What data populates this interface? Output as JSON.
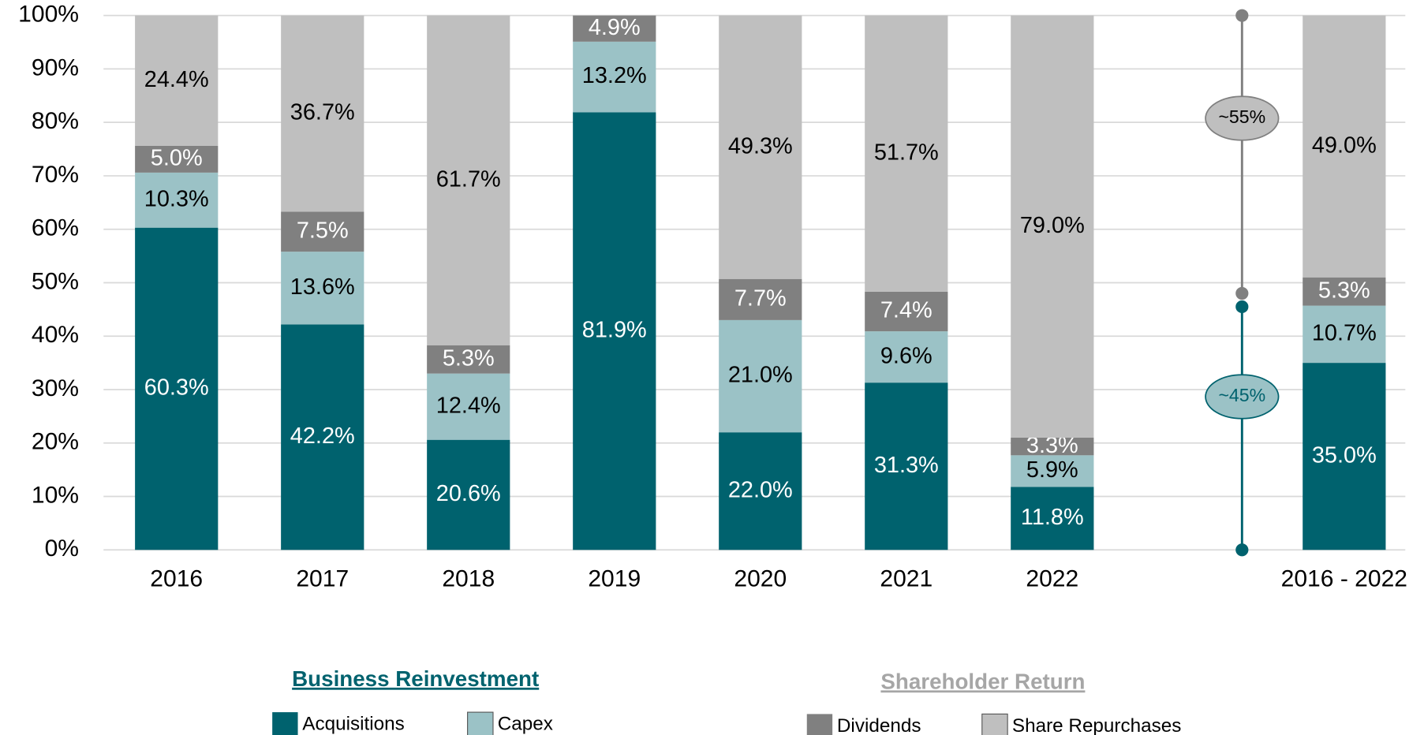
{
  "chart_data": {
    "type": "stacked_bar",
    "categories": [
      "2016",
      "2017",
      "2018",
      "2019",
      "2020",
      "2021",
      "2022",
      "2016 - 2022"
    ],
    "series": [
      {
        "name": "Acquisitions",
        "color": "#00626e",
        "label_color": "#ffffff",
        "values": [
          60.3,
          42.2,
          20.6,
          81.9,
          22.0,
          31.3,
          11.8,
          35.0
        ],
        "value_labels": [
          "60.3%",
          "42.2%",
          "20.6%",
          "81.9%",
          "22.0%",
          "31.3%",
          "11.8%",
          "35.0%"
        ]
      },
      {
        "name": "Capex",
        "color": "#9bc2c6",
        "label_color": "#000000",
        "values": [
          10.3,
          13.6,
          12.4,
          13.2,
          21.0,
          9.6,
          5.9,
          10.7
        ],
        "value_labels": [
          "10.3%",
          "13.6%",
          "12.4%",
          "13.2%",
          "21.0%",
          "9.6%",
          "5.9%",
          "10.7%"
        ]
      },
      {
        "name": "Dividends",
        "color": "#808080",
        "label_color": "#ffffff",
        "values": [
          5.0,
          7.5,
          5.3,
          4.9,
          7.7,
          7.4,
          3.3,
          5.3
        ],
        "value_labels": [
          "5.0%",
          "7.5%",
          "5.3%",
          "4.9%",
          "7.7%",
          "7.4%",
          "3.3%",
          "5.3%"
        ]
      },
      {
        "name": "Share Repurchases",
        "color": "#bfbfbf",
        "label_color": "#000000",
        "values": [
          24.4,
          36.7,
          61.7,
          0,
          49.3,
          51.7,
          79.0,
          49.0
        ],
        "value_labels": [
          "24.4%",
          "36.7%",
          "61.7%",
          null,
          "49.3%",
          "51.7%",
          "79.0%",
          "49.0%"
        ]
      }
    ],
    "ylim": [
      0,
      100
    ],
    "yticks": [
      {
        "value": 0,
        "label": "0%"
      },
      {
        "value": 10,
        "label": "10%"
      },
      {
        "value": 20,
        "label": "20%"
      },
      {
        "value": 30,
        "label": "30%"
      },
      {
        "value": 40,
        "label": "40%"
      },
      {
        "value": 50,
        "label": "50%"
      },
      {
        "value": 60,
        "label": "60%"
      },
      {
        "value": 70,
        "label": "70%"
      },
      {
        "value": 80,
        "label": "80%"
      },
      {
        "value": 90,
        "label": "90%"
      },
      {
        "value": 100,
        "label": "100%"
      }
    ],
    "grid": true,
    "annotations": [
      {
        "text": "~55%",
        "from": 100,
        "to": 48,
        "color": "#808080"
      },
      {
        "text": "~45%",
        "from": 45.5,
        "to": 0,
        "color": "#00626e"
      }
    ],
    "legend_groups": [
      {
        "title": "Business Reinvestment",
        "color": "#00626e"
      },
      {
        "title": "Shareholder Return",
        "color": "#a6a6a6"
      }
    ]
  }
}
